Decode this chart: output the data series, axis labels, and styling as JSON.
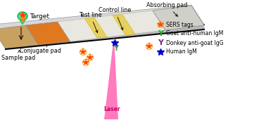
{
  "bg_color": "#ffffff",
  "labels": {
    "target": "Target",
    "sample_pad": "Sample pad",
    "conjugate_pad": "Conjugate pad",
    "test_line": "Test line",
    "control_line": "Control line",
    "absorbing_pad": "Absorbing pad",
    "laser": "Laser"
  },
  "legend_items": [
    {
      "label": "SERS tags",
      "color": "#ff4500",
      "type": "sers"
    },
    {
      "label": "Goat anti-human IgM",
      "color": "#22aa22",
      "type": "upsilon"
    },
    {
      "label": "Donkey anti-goat IgG",
      "color": "#882288",
      "type": "upsilon"
    },
    {
      "label": "Human IgM",
      "color": "#0000cc",
      "type": "star"
    }
  ],
  "strip": {
    "top_face": "#d8d8d8",
    "side_face": "#b8b8b8",
    "edge": "#999999",
    "sample_pad": "#c8a060",
    "conjugate_pad": "#e07820",
    "nc_membrane": "#e8e8e0",
    "test_line": "#e8d060",
    "control_line": "#e8d060",
    "absorbing_pad": "#d0d0c8"
  },
  "laser_color": "#ff69b4",
  "laser_label_color": "#cc0066",
  "sers_red": "#ff4500",
  "sers_orange": "#ff8800",
  "drop_color": "#22cc66",
  "drop_edge": "#00aa44"
}
